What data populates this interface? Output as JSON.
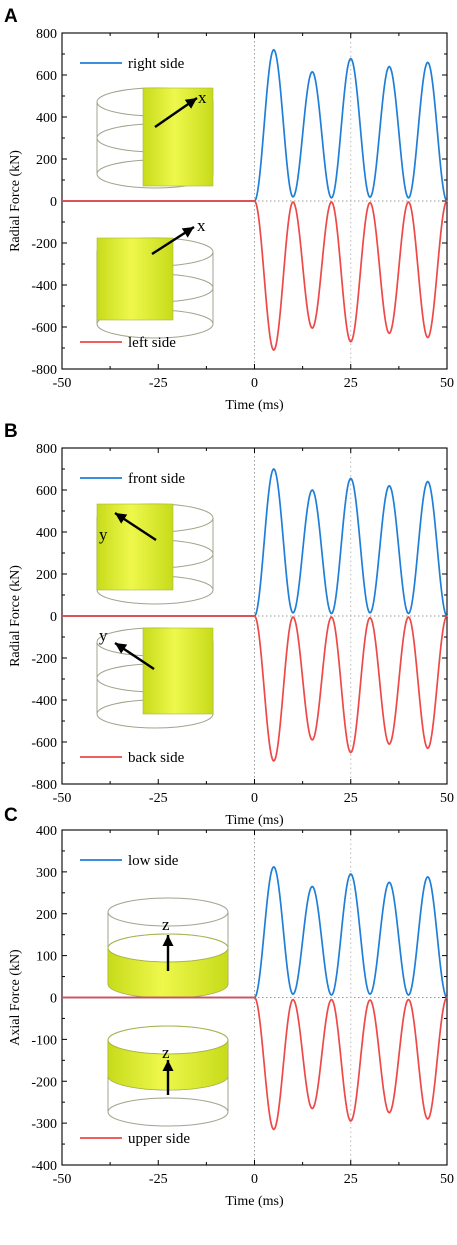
{
  "colors": {
    "upper_series": "#1f7fd8",
    "lower_series": "#ee4848",
    "ring_fill_light": "#eef84c",
    "ring_fill_dark": "#c7db1a",
    "ring_outline": "#9fa58c"
  },
  "chart_data": [
    {
      "type": "line",
      "panel_label": "A",
      "xlabel": "Time (ms)",
      "ylabel": "Radial Force (kN)",
      "xlim": [
        -50,
        50
      ],
      "ylim": [
        -800,
        800
      ],
      "xticks": [
        -50,
        -25,
        0,
        25,
        50
      ],
      "yticks": [
        -800,
        -600,
        -400,
        -200,
        0,
        200,
        400,
        600,
        800
      ],
      "zero_lines": true,
      "legend_location": "left",
      "series": [
        {
          "name": "right side",
          "color": "#1f7fd8",
          "x": [
            -50,
            0,
            5,
            10,
            15,
            20,
            25,
            30,
            35,
            40,
            45,
            50
          ],
          "y": [
            0,
            0,
            720,
            20,
            615,
            15,
            678,
            18,
            640,
            15,
            660,
            0
          ]
        },
        {
          "name": "left side",
          "color": "#ee4848",
          "x": [
            -50,
            0,
            5,
            10,
            15,
            20,
            25,
            30,
            35,
            40,
            45,
            50
          ],
          "y": [
            0,
            0,
            -710,
            -5,
            -605,
            -5,
            -670,
            -8,
            -630,
            -5,
            -650,
            0
          ]
        }
      ],
      "insets": [
        {
          "arrow_label": "x"
        },
        {
          "arrow_label": "x"
        }
      ]
    },
    {
      "type": "line",
      "panel_label": "B",
      "xlabel": "Time (ms)",
      "ylabel": "Radial Force (kN)",
      "xlim": [
        -50,
        50
      ],
      "ylim": [
        -800,
        800
      ],
      "xticks": [
        -50,
        -25,
        0,
        25,
        50
      ],
      "yticks": [
        -800,
        -600,
        -400,
        -200,
        0,
        200,
        400,
        600,
        800
      ],
      "zero_lines": true,
      "legend_location": "left",
      "series": [
        {
          "name": "front side",
          "color": "#1f7fd8",
          "x": [
            -50,
            0,
            5,
            10,
            15,
            20,
            25,
            30,
            35,
            40,
            45,
            50
          ],
          "y": [
            0,
            0,
            700,
            15,
            600,
            12,
            655,
            15,
            620,
            12,
            640,
            0
          ]
        },
        {
          "name": "back side",
          "color": "#ee4848",
          "x": [
            -50,
            0,
            5,
            10,
            15,
            20,
            25,
            30,
            35,
            40,
            45,
            50
          ],
          "y": [
            0,
            0,
            -690,
            -5,
            -590,
            -5,
            -650,
            -8,
            -610,
            -5,
            -630,
            0
          ]
        }
      ],
      "insets": [
        {
          "arrow_label": "y"
        },
        {
          "arrow_label": "y"
        }
      ]
    },
    {
      "type": "line",
      "panel_label": "C",
      "xlabel": "Time (ms)",
      "ylabel": "Axial Force (kN)",
      "xlim": [
        -50,
        50
      ],
      "ylim": [
        -400,
        400
      ],
      "xticks": [
        -50,
        -25,
        0,
        25,
        50
      ],
      "yticks": [
        -400,
        -300,
        -200,
        -100,
        0,
        100,
        200,
        300,
        400
      ],
      "zero_lines": true,
      "legend_location": "left",
      "series": [
        {
          "name": "low side",
          "color": "#1f7fd8",
          "x": [
            -50,
            0,
            5,
            10,
            15,
            20,
            25,
            30,
            35,
            40,
            45,
            50
          ],
          "y": [
            0,
            0,
            312,
            8,
            265,
            6,
            295,
            8,
            275,
            6,
            288,
            0
          ]
        },
        {
          "name": "upper side",
          "color": "#ee4848",
          "x": [
            -50,
            0,
            5,
            10,
            15,
            20,
            25,
            30,
            35,
            40,
            45,
            50
          ],
          "y": [
            0,
            0,
            -315,
            -5,
            -265,
            -5,
            -295,
            -6,
            -275,
            -5,
            -290,
            0
          ]
        }
      ],
      "insets": [
        {
          "arrow_label": "z"
        },
        {
          "arrow_label": "z"
        }
      ]
    }
  ]
}
